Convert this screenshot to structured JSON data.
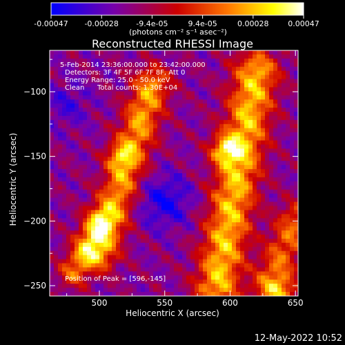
{
  "colorbar": {
    "tick_labels": [
      "-0.00047",
      "-0.00028",
      "-9.4e-05",
      "9.4e-05",
      "0.00028",
      "0.00047"
    ],
    "units": "(photons cm⁻² s⁻¹ asec⁻²)",
    "range": [
      -0.00047,
      0.00047
    ]
  },
  "chart_data": {
    "type": "heatmap",
    "title": "Reconstructed RHESSI Image",
    "xlabel": "Heliocentric X (arcsec)",
    "ylabel": "Heliocentric Y (arcsec)",
    "xlim": [
      462,
      652
    ],
    "ylim": [
      -258,
      -68
    ],
    "x_ticks": [
      500,
      550,
      600,
      650
    ],
    "y_ticks": [
      -250,
      -200,
      -150,
      -100
    ],
    "colormap": [
      "#0000ff",
      "#7700aa",
      "#cc0000",
      "#ff7700",
      "#ffff00",
      "#ffffff"
    ],
    "peak_position": [
      596,
      -145
    ],
    "annotations": [
      "5-Feb-2014 23:36:00.000 to 23:42:00.000",
      "Detectors: 3F 4F 5F 6F 7F 8F, Att 0",
      "Energy Range: 25.0 - 50.0 keV",
      "Clean",
      "Total counts: 1.30E+04",
      "Position of Peak = [596,-145]"
    ]
  },
  "footer": {
    "timestamp": "12-May-2022 10:52"
  }
}
